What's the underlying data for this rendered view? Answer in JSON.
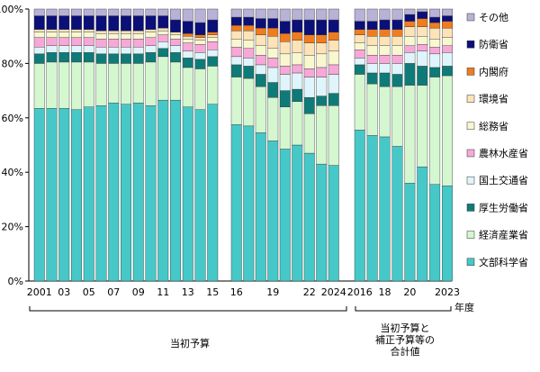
{
  "chart_data": {
    "type": "bar",
    "stacked": true,
    "y_unit": "%",
    "ylim": [
      0,
      100
    ],
    "yticks": [
      "0%",
      "20%",
      "40%",
      "60%",
      "80%",
      "100%"
    ],
    "x_unit_label": "年度",
    "legend_placement": "right",
    "group_labels": [
      "当初予算",
      "当初予算と\n補正予算等の\n合計値"
    ],
    "series": [
      {
        "name": "文部科学省",
        "color": "#46c8c8"
      },
      {
        "name": "経済産業省",
        "color": "#d4f7d0"
      },
      {
        "name": "厚生労働省",
        "color": "#0f7b78"
      },
      {
        "name": "国土交通省",
        "color": "#dff5fb"
      },
      {
        "name": "農林水産省",
        "color": "#f7a8d8"
      },
      {
        "name": "総務省",
        "color": "#f8f7cf"
      },
      {
        "name": "環境省",
        "color": "#fde3b8"
      },
      {
        "name": "内閣府",
        "color": "#ef7c1f"
      },
      {
        "name": "防衛省",
        "color": "#0b0f78"
      },
      {
        "name": "その他",
        "color": "#b7b2d6"
      }
    ],
    "groups": [
      {
        "name": "当初予算",
        "years": [
          "2001",
          "2002",
          "2003",
          "2004",
          "2005",
          "2006",
          "2007",
          "2008",
          "2009",
          "2010",
          "2011",
          "2012",
          "2013",
          "2014",
          "2015"
        ],
        "x_labels": [
          "2001",
          "",
          "03",
          "",
          "05",
          "",
          "07",
          "",
          "09",
          "",
          "11",
          "",
          "13",
          "",
          "15"
        ],
        "data": [
          [
            63.5,
            16.5,
            3.5,
            2.5,
            3.5,
            2.0,
            1.0,
            0.0,
            5.0,
            2.5
          ],
          [
            63.5,
            17.0,
            3.5,
            2.5,
            3.0,
            2.0,
            1.0,
            0.0,
            5.0,
            2.5
          ],
          [
            63.5,
            17.0,
            3.5,
            2.5,
            3.0,
            2.0,
            1.0,
            0.0,
            5.0,
            2.5
          ],
          [
            63.0,
            17.5,
            3.5,
            2.5,
            3.0,
            2.0,
            1.0,
            0.0,
            5.0,
            2.5
          ],
          [
            64.0,
            16.5,
            3.5,
            2.5,
            3.0,
            2.0,
            1.0,
            0.0,
            5.0,
            2.5
          ],
          [
            64.5,
            15.5,
            3.5,
            2.5,
            3.0,
            2.0,
            1.0,
            0.0,
            5.5,
            2.5
          ],
          [
            65.5,
            14.5,
            3.5,
            2.5,
            3.0,
            2.0,
            1.0,
            0.0,
            5.5,
            2.5
          ],
          [
            65.0,
            15.0,
            3.5,
            2.5,
            3.0,
            2.0,
            1.0,
            0.0,
            5.5,
            2.5
          ],
          [
            65.5,
            14.5,
            3.5,
            2.5,
            3.0,
            2.0,
            1.0,
            0.0,
            5.5,
            2.5
          ],
          [
            64.5,
            16.0,
            3.5,
            2.5,
            3.0,
            2.0,
            1.0,
            0.0,
            5.0,
            2.5
          ],
          [
            66.5,
            16.0,
            3.0,
            2.5,
            2.5,
            1.5,
            1.0,
            0.0,
            4.5,
            2.5
          ],
          [
            66.5,
            14.0,
            3.5,
            2.5,
            2.5,
            1.5,
            1.0,
            0.0,
            4.5,
            4.0
          ],
          [
            64.0,
            14.5,
            3.5,
            2.5,
            3.0,
            1.5,
            1.0,
            1.0,
            4.5,
            4.5
          ],
          [
            63.0,
            15.0,
            3.5,
            2.5,
            3.0,
            1.5,
            1.0,
            1.0,
            4.5,
            5.0
          ],
          [
            65.0,
            14.0,
            3.5,
            2.5,
            3.0,
            1.5,
            1.0,
            1.0,
            4.5,
            4.0
          ]
        ]
      },
      {
        "name": "当初予算_2",
        "years": [
          "2016",
          "2017",
          "2018",
          "2019",
          "2020",
          "2021",
          "2022",
          "2023",
          "2024"
        ],
        "x_labels": [
          "16",
          "",
          "",
          "19",
          "",
          "",
          "22",
          "",
          "2024"
        ],
        "data": [
          [
            57.5,
            17.5,
            4.5,
            3.0,
            3.5,
            3.0,
            3.0,
            2.0,
            3.0,
            3.0
          ],
          [
            57.0,
            17.5,
            4.5,
            3.0,
            3.5,
            3.0,
            3.5,
            2.0,
            3.0,
            3.0
          ],
          [
            54.5,
            17.0,
            4.5,
            3.5,
            3.5,
            3.5,
            4.0,
            2.5,
            3.5,
            3.5
          ],
          [
            51.5,
            16.0,
            5.5,
            5.5,
            3.5,
            3.5,
            4.5,
            3.0,
            3.5,
            3.5
          ],
          [
            48.5,
            15.5,
            6.0,
            6.0,
            3.0,
            4.5,
            4.5,
            3.0,
            4.5,
            4.5
          ],
          [
            50.0,
            16.0,
            4.5,
            6.0,
            3.0,
            4.5,
            4.5,
            3.0,
            4.5,
            4.0
          ],
          [
            47.0,
            14.5,
            6.0,
            7.5,
            3.0,
            5.0,
            4.5,
            3.0,
            5.5,
            4.0
          ],
          [
            43.0,
            21.5,
            3.5,
            7.0,
            3.5,
            5.0,
            4.0,
            3.0,
            5.5,
            4.0
          ],
          [
            42.5,
            22.0,
            4.5,
            7.0,
            3.5,
            5.0,
            4.0,
            3.0,
            4.5,
            4.0
          ]
        ]
      },
      {
        "name": "当初予算と\n補正予算等の\n合計値",
        "years": [
          "2016",
          "2017",
          "2018",
          "2019",
          "2020",
          "2021",
          "2022",
          "2023"
        ],
        "x_labels": [
          "2016",
          "",
          "18",
          "",
          "20",
          "",
          "",
          "2023"
        ],
        "data": [
          [
            55.5,
            20.5,
            3.5,
            2.5,
            3.0,
            2.5,
            3.0,
            2.0,
            3.0,
            4.5
          ],
          [
            53.5,
            19.0,
            4.0,
            3.5,
            3.0,
            3.5,
            3.5,
            2.5,
            3.0,
            4.5
          ],
          [
            53.0,
            18.5,
            5.0,
            3.5,
            3.0,
            3.5,
            3.5,
            2.5,
            3.5,
            4.0
          ],
          [
            49.5,
            22.0,
            4.5,
            4.0,
            3.0,
            3.5,
            3.5,
            2.5,
            3.5,
            4.0
          ],
          [
            36.0,
            36.0,
            8.0,
            4.0,
            2.5,
            3.5,
            3.5,
            2.0,
            2.5,
            2.0
          ],
          [
            42.0,
            30.0,
            7.0,
            5.5,
            2.5,
            3.0,
            3.5,
            3.0,
            2.5,
            1.0
          ],
          [
            35.5,
            39.5,
            3.5,
            5.0,
            2.5,
            3.0,
            4.0,
            2.0,
            2.0,
            3.0
          ],
          [
            35.0,
            40.5,
            3.5,
            5.0,
            2.5,
            3.0,
            3.5,
            2.5,
            2.0,
            2.5
          ]
        ]
      }
    ]
  }
}
